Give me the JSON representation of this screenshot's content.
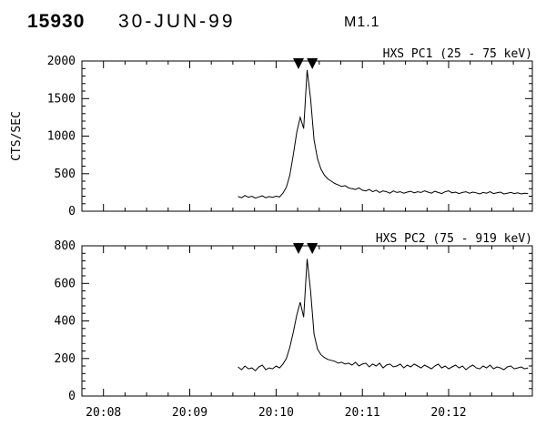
{
  "header": {
    "event_id": "15930",
    "date": "30-JUN-99",
    "goes_class": "M1.1"
  },
  "colors": {
    "line": "#000000",
    "background": "#ffffff",
    "marker": "#000000"
  },
  "x_axis": {
    "min": 7.75,
    "max": 12.97,
    "major_ticks": [
      8,
      9,
      10,
      11,
      12
    ],
    "labels": [
      "20:08",
      "20:09",
      "20:10",
      "20:11",
      "20:12"
    ],
    "minor_step": 0.25,
    "x_encoding": "minutes after 20:00 UT"
  },
  "flare_markers_min": [
    10.26,
    10.42
  ],
  "chart_data": [
    {
      "type": "line",
      "title": "HXS PC1 (25 - 75 keV)",
      "ylabel": "CTS/SEC",
      "xlabel": "",
      "ylim": [
        0,
        2000
      ],
      "yticks": [
        0,
        500,
        1000,
        1500,
        2000
      ],
      "grid": false,
      "x_start_min": 9.56,
      "x_step_min": 0.04,
      "values": [
        195,
        180,
        210,
        185,
        200,
        175,
        190,
        205,
        180,
        195,
        185,
        200,
        190,
        240,
        320,
        480,
        750,
        1050,
        1250,
        1100,
        1880,
        1500,
        950,
        700,
        560,
        480,
        430,
        400,
        370,
        350,
        330,
        340,
        310,
        300,
        290,
        310,
        280,
        270,
        290,
        260,
        280,
        250,
        270,
        260,
        240,
        270,
        250,
        260,
        240,
        255,
        265,
        245,
        260,
        250,
        270,
        255,
        240,
        265,
        250,
        235,
        260,
        270,
        245,
        255,
        235,
        250,
        260,
        240,
        255,
        245,
        230,
        250,
        240,
        260,
        235,
        245,
        255,
        230,
        240,
        250,
        235,
        245,
        230,
        240,
        235
      ]
    },
    {
      "type": "line",
      "title": "HXS PC2 (75 - 919 keV)",
      "ylabel": "",
      "xlabel": "",
      "ylim": [
        0,
        800
      ],
      "yticks": [
        0,
        200,
        400,
        600,
        800
      ],
      "grid": false,
      "x_start_min": 9.56,
      "x_step_min": 0.04,
      "values": [
        155,
        140,
        160,
        145,
        150,
        135,
        155,
        165,
        140,
        150,
        145,
        160,
        150,
        170,
        200,
        260,
        340,
        430,
        500,
        420,
        730,
        560,
        330,
        250,
        220,
        205,
        195,
        190,
        185,
        175,
        180,
        170,
        175,
        165,
        180,
        160,
        170,
        175,
        155,
        170,
        160,
        175,
        150,
        165,
        170,
        155,
        160,
        170,
        150,
        165,
        155,
        170,
        160,
        150,
        165,
        155,
        145,
        160,
        170,
        150,
        160,
        145,
        155,
        165,
        150,
        160,
        140,
        155,
        165,
        150,
        145,
        160,
        150,
        165,
        145,
        155,
        150,
        140,
        155,
        160,
        145,
        150,
        155,
        145,
        150
      ]
    }
  ]
}
